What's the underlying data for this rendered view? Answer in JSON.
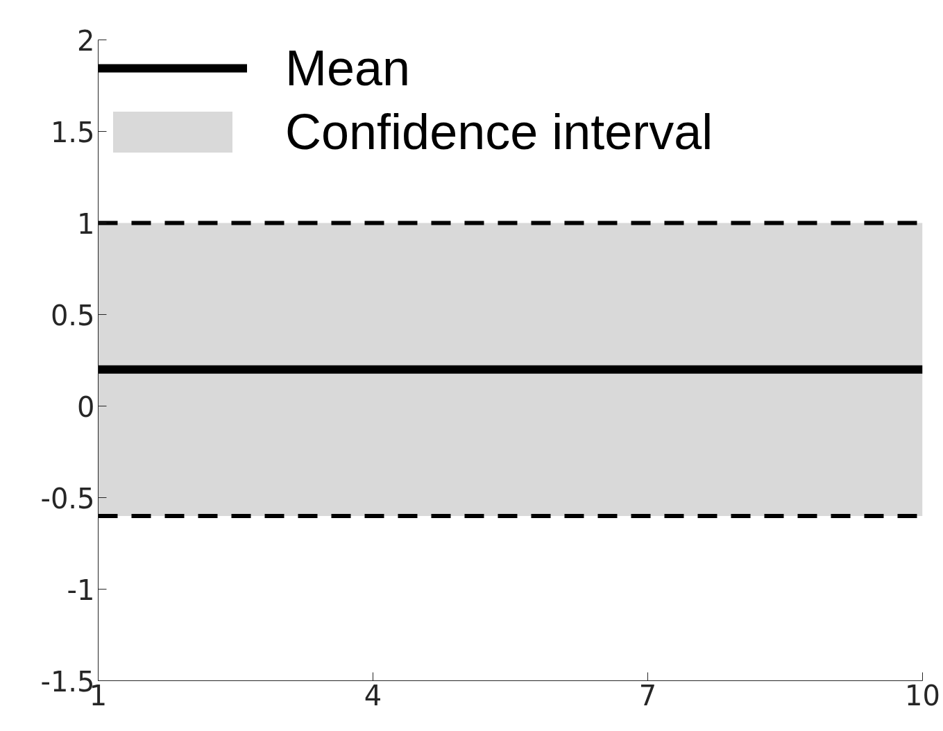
{
  "chart_data": {
    "type": "line",
    "x": [
      1,
      10
    ],
    "series": [
      {
        "name": "Mean",
        "color": "#000000",
        "values": [
          0.2,
          0.2
        ]
      }
    ],
    "bands": [
      {
        "axis": "y",
        "from": -0.6,
        "to": 1,
        "label": "Confidence interval",
        "color": "#d9d9d9"
      }
    ],
    "ref_lines": [
      {
        "axis": "y",
        "value": 1,
        "label": null,
        "color": "#000000",
        "line_style": "dashed"
      },
      {
        "axis": "y",
        "value": -0.6,
        "label": null,
        "color": "#000000",
        "line_style": "dashed"
      }
    ],
    "xlim": [
      1,
      10
    ],
    "ylim": [
      -1.5,
      2
    ],
    "xticks": [
      1,
      4,
      7,
      10
    ],
    "yticks": [
      -1.5,
      -1,
      -0.5,
      0,
      0.5,
      1,
      1.5,
      2
    ],
    "grid": false,
    "legend": "top left",
    "line_style": "solid",
    "marker": "none"
  }
}
